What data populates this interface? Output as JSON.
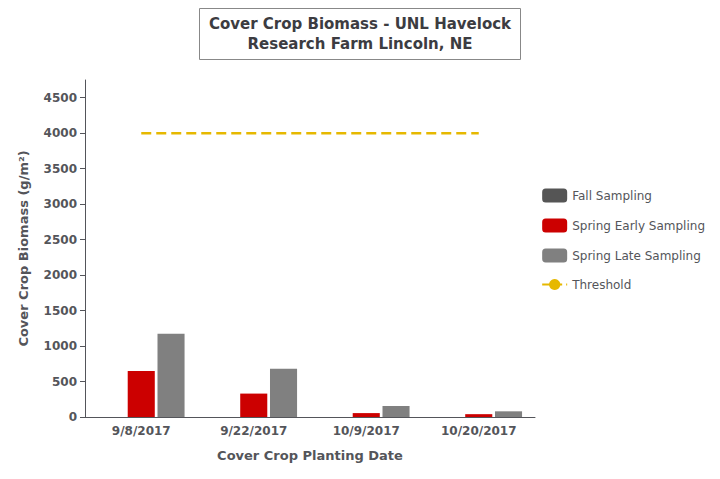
{
  "chart_data": {
    "type": "bar",
    "title": "Cover Crop Biomass - UNL Havelock\nResearch Farm Lincoln, NE",
    "xlabel": "Cover Crop Planting Date",
    "ylabel": "Cover Crop Biomass (g/m²)",
    "categories": [
      "9/8/2017",
      "9/22/2017",
      "10/9/2017",
      "10/20/2017"
    ],
    "series": [
      {
        "name": "Fall Sampling",
        "color": "#555555",
        "values": [
          0,
          0,
          0,
          0
        ]
      },
      {
        "name": "Spring Early Sampling",
        "color": "#cc0000",
        "values": [
          650,
          330,
          55,
          40
        ]
      },
      {
        "name": "Spring Late Sampling",
        "color": "#808080",
        "values": [
          1175,
          680,
          155,
          80
        ]
      },
      {
        "name": "Threshold",
        "type": "line",
        "line_style": "dashed",
        "color": "#e6b800",
        "values": [
          4000,
          4000,
          4000,
          4000
        ]
      }
    ],
    "ylim": [
      0,
      4750
    ],
    "yticks": [
      0,
      500,
      1000,
      1500,
      2000,
      2500,
      3000,
      3500,
      4000,
      4500
    ],
    "grid": false,
    "legend": "right"
  }
}
